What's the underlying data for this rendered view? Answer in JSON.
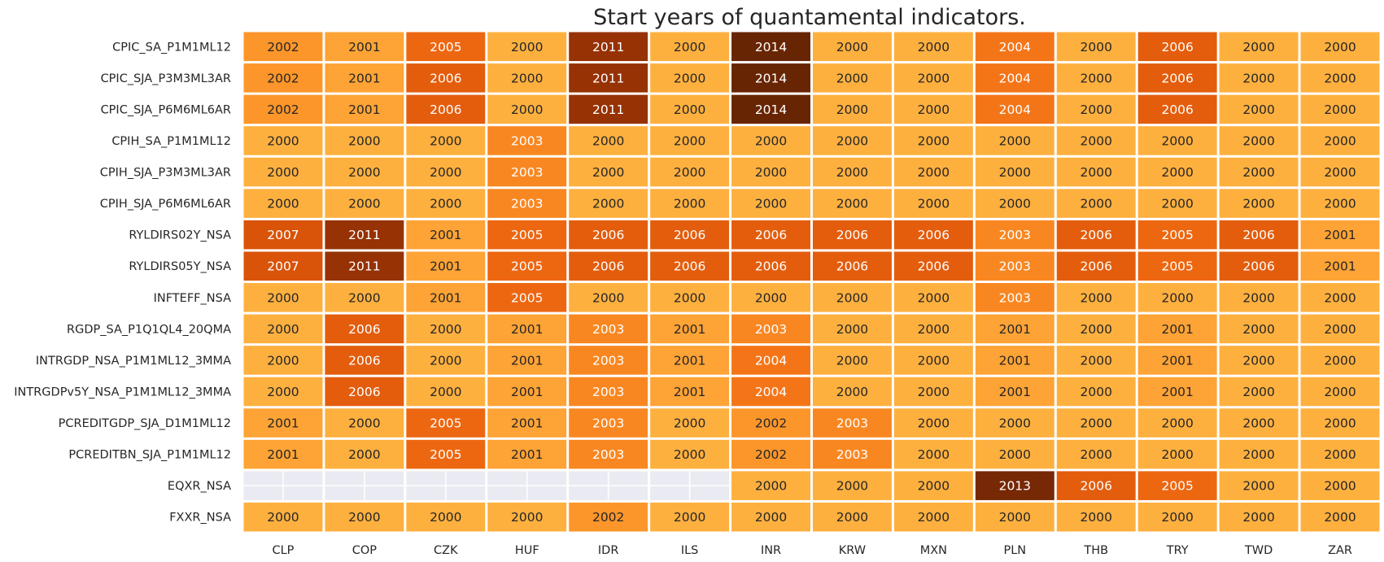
{
  "chart_data": {
    "type": "heatmap",
    "title": "Start years of quantamental indicators.",
    "xlabel": "",
    "ylabel": "",
    "columns": [
      "CLP",
      "COP",
      "CZK",
      "HUF",
      "IDR",
      "ILS",
      "INR",
      "KRW",
      "MXN",
      "PLN",
      "THB",
      "TRY",
      "TWD",
      "ZAR"
    ],
    "rows": [
      "CPIC_SA_P1M1ML12",
      "CPIC_SJA_P3M3ML3AR",
      "CPIC_SJA_P6M6ML6AR",
      "CPIH_SA_P1M1ML12",
      "CPIH_SJA_P3M3ML3AR",
      "CPIH_SJA_P6M6ML6AR",
      "RYLDIRS02Y_NSA",
      "RYLDIRS05Y_NSA",
      "INFTEFF_NSA",
      "RGDP_SA_P1Q1QL4_20QMA",
      "INTRGDP_NSA_P1M1ML12_3MMA",
      "INTRGDPv5Y_NSA_P1M1ML12_3MMA",
      "PCREDITGDP_SJA_D1M1ML12",
      "PCREDITBN_SJA_P1M1ML12",
      "EQXR_NSA",
      "FXXR_NSA"
    ],
    "values": [
      [
        2002,
        2001,
        2005,
        2000,
        2011,
        2000,
        2014,
        2000,
        2000,
        2004,
        2000,
        2006,
        2000,
        2000
      ],
      [
        2002,
        2001,
        2006,
        2000,
        2011,
        2000,
        2014,
        2000,
        2000,
        2004,
        2000,
        2006,
        2000,
        2000
      ],
      [
        2002,
        2001,
        2006,
        2000,
        2011,
        2000,
        2014,
        2000,
        2000,
        2004,
        2000,
        2006,
        2000,
        2000
      ],
      [
        2000,
        2000,
        2000,
        2003,
        2000,
        2000,
        2000,
        2000,
        2000,
        2000,
        2000,
        2000,
        2000,
        2000
      ],
      [
        2000,
        2000,
        2000,
        2003,
        2000,
        2000,
        2000,
        2000,
        2000,
        2000,
        2000,
        2000,
        2000,
        2000
      ],
      [
        2000,
        2000,
        2000,
        2003,
        2000,
        2000,
        2000,
        2000,
        2000,
        2000,
        2000,
        2000,
        2000,
        2000
      ],
      [
        2007,
        2011,
        2001,
        2005,
        2006,
        2006,
        2006,
        2006,
        2006,
        2003,
        2006,
        2005,
        2006,
        2001
      ],
      [
        2007,
        2011,
        2001,
        2005,
        2006,
        2006,
        2006,
        2006,
        2006,
        2003,
        2006,
        2005,
        2006,
        2001
      ],
      [
        2000,
        2000,
        2001,
        2005,
        2000,
        2000,
        2000,
        2000,
        2000,
        2003,
        2000,
        2000,
        2000,
        2000
      ],
      [
        2000,
        2006,
        2000,
        2001,
        2003,
        2001,
        2003,
        2000,
        2000,
        2001,
        2000,
        2001,
        2000,
        2000
      ],
      [
        2000,
        2006,
        2000,
        2001,
        2003,
        2001,
        2004,
        2000,
        2000,
        2001,
        2000,
        2001,
        2000,
        2000
      ],
      [
        2000,
        2006,
        2000,
        2001,
        2003,
        2001,
        2004,
        2000,
        2000,
        2001,
        2000,
        2001,
        2000,
        2000
      ],
      [
        2001,
        2000,
        2005,
        2001,
        2003,
        2000,
        2002,
        2003,
        2000,
        2000,
        2000,
        2000,
        2000,
        2000
      ],
      [
        2001,
        2000,
        2005,
        2001,
        2003,
        2000,
        2002,
        2003,
        2000,
        2000,
        2000,
        2000,
        2000,
        2000
      ],
      [
        null,
        null,
        null,
        null,
        null,
        null,
        2000,
        2000,
        2000,
        2013,
        2006,
        2005,
        2000,
        2000
      ],
      [
        2000,
        2000,
        2000,
        2000,
        2002,
        2000,
        2000,
        2000,
        2000,
        2000,
        2000,
        2000,
        2000,
        2000
      ]
    ],
    "colorscale": {
      "vmin": 2000,
      "vmax": 2014,
      "stops": [
        "#feb03f",
        "#fd9227",
        "#f06a12",
        "#d95309",
        "#b43d05",
        "#8a2d04",
        "#682504"
      ]
    },
    "missing_color": "#eaeaf2",
    "grid": true,
    "legend": "none"
  }
}
